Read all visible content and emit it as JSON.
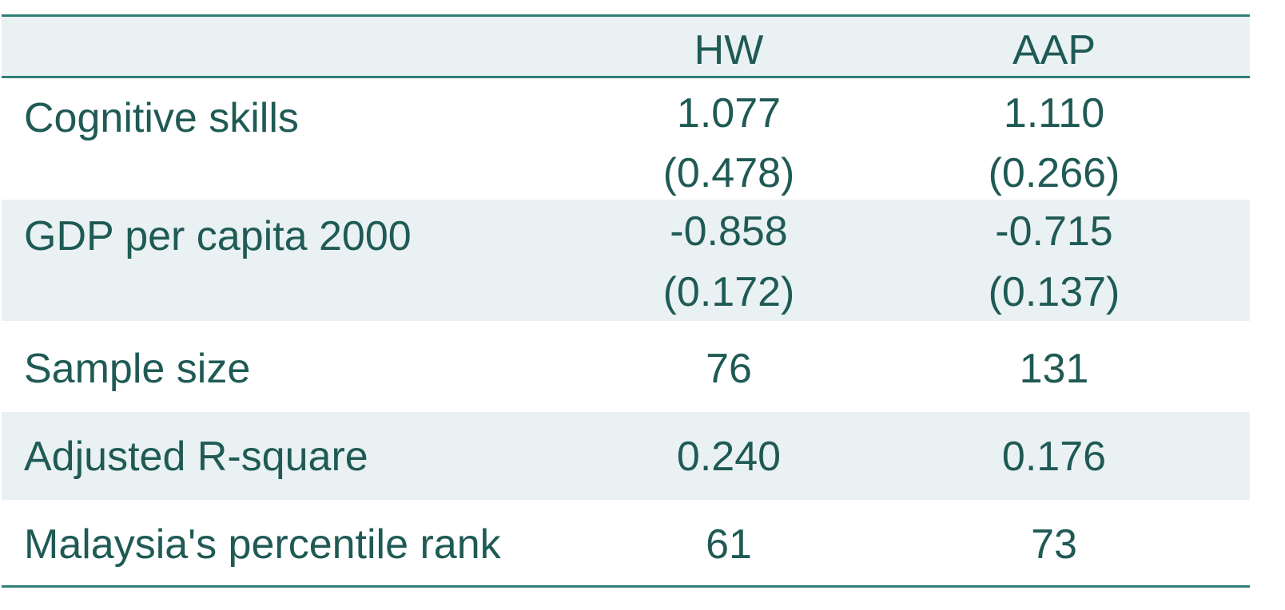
{
  "table": {
    "columns": [
      "",
      "HW",
      "AAP"
    ],
    "rows": [
      {
        "label": "Cognitive skills",
        "hw": "1.077",
        "aap": "1.110",
        "hw_se": "(0.478)",
        "aap_se": "(0.266)"
      },
      {
        "label": "GDP per capita 2000",
        "hw": "-0.858",
        "aap": "-0.715",
        "hw_se": "(0.172)",
        "aap_se": "(0.137)"
      },
      {
        "label": "Sample size",
        "hw": "76",
        "aap": "131"
      },
      {
        "label": "Adjusted R-square",
        "hw": "0.240",
        "aap": "0.176"
      },
      {
        "label": "Malaysia's percentile rank",
        "hw": "61",
        "aap": "73"
      }
    ]
  },
  "colors": {
    "text": "#1f5a55",
    "rule": "#2f7f78",
    "shade": "#e9f1f2"
  }
}
